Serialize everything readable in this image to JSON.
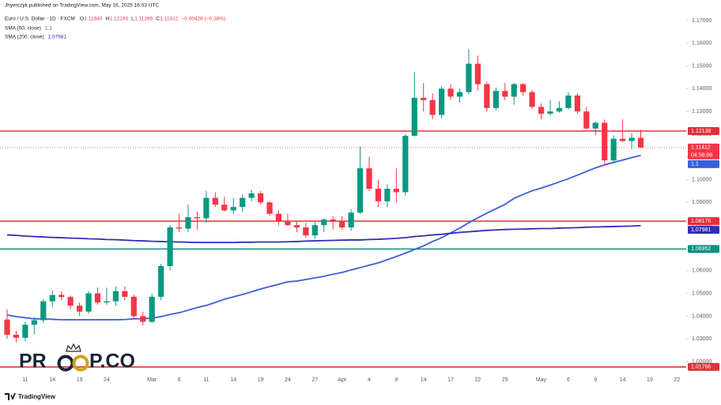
{
  "header": {
    "author": "Jhyerczyk published on TradingView.com, May 16, 2025 16:03 UTC",
    "symbol": "Euro / U.S. Dollar · 1D · FXCM",
    "ohlc": [
      {
        "label": "O",
        "value": "1.11840"
      },
      {
        "label": "H",
        "value": "1.12193"
      },
      {
        "label": "L",
        "value": "1.11396"
      },
      {
        "label": "C",
        "value": "1.11412"
      }
    ],
    "change": "−0.00428 (−0.38%)"
  },
  "chart_data": {
    "type": "candlestick",
    "categories": [
      null,
      null,
      "11",
      null,
      null,
      "14",
      null,
      null,
      "19",
      null,
      null,
      "24",
      null,
      null,
      null,
      null,
      "Mar",
      null,
      null,
      "6",
      null,
      null,
      "11",
      null,
      null,
      "14",
      null,
      null,
      "19",
      null,
      null,
      "24",
      null,
      null,
      "27",
      null,
      null,
      "Apr",
      null,
      null,
      "4",
      null,
      null,
      "9",
      null,
      null,
      "14",
      null,
      null,
      "17",
      null,
      null,
      "22",
      null,
      null,
      "25",
      null,
      null,
      null,
      "May",
      null,
      null,
      "6",
      null,
      null,
      "9",
      null,
      null,
      "14",
      null,
      null,
      "19",
      null,
      null,
      "22"
    ],
    "open": [
      1.0385,
      1.0318,
      1.0305,
      1.0362,
      1.0382,
      1.0465,
      1.0493,
      1.0484,
      1.0446,
      1.042,
      1.05,
      1.046,
      1.0465,
      1.051,
      1.0485,
      1.04,
      1.0375,
      1.0485,
      1.062,
      1.079,
      1.0785,
      1.0835,
      1.083,
      1.092,
      1.089,
      1.0865,
      1.088,
      1.092,
      1.094,
      1.09,
      1.085,
      1.0815,
      1.08,
      1.079,
      1.0755,
      1.08,
      1.0825,
      1.0815,
      1.079,
      1.0855,
      1.105,
      1.096,
      1.0905,
      1.096,
      1.0945,
      1.1193,
      1.136,
      1.135,
      1.1285,
      1.14,
      1.1365,
      1.1385,
      1.151,
      1.142,
      1.1315,
      1.139,
      1.1365,
      1.142,
      1.1385,
      1.132,
      1.129,
      1.13,
      1.1315,
      1.137,
      1.13,
      1.1225,
      1.125,
      1.1085,
      1.118,
      1.117,
      1.1184,
      null,
      null,
      null,
      null
    ],
    "high": [
      1.043,
      1.0335,
      1.0375,
      1.0395,
      1.0475,
      1.0515,
      1.051,
      1.049,
      1.046,
      1.051,
      1.0525,
      1.0525,
      1.053,
      1.053,
      1.0495,
      1.042,
      1.05,
      1.063,
      1.08,
      1.085,
      1.089,
      1.086,
      1.095,
      1.0945,
      1.0925,
      1.092,
      1.0935,
      1.0955,
      1.095,
      1.0905,
      1.0865,
      1.085,
      1.082,
      1.081,
      1.0815,
      1.083,
      1.084,
      1.084,
      1.087,
      1.1145,
      1.11,
      1.1,
      1.098,
      1.105,
      1.12,
      1.1473,
      1.1425,
      1.138,
      1.141,
      1.142,
      1.14,
      1.1573,
      1.1545,
      1.143,
      1.1405,
      1.1425,
      1.1425,
      1.1425,
      1.1395,
      1.1335,
      1.135,
      1.1345,
      1.1385,
      1.138,
      1.132,
      1.1255,
      1.1265,
      1.1195,
      1.1265,
      1.1205,
      1.12193,
      null,
      null,
      null,
      null
    ],
    "low": [
      1.03,
      1.0285,
      1.029,
      1.032,
      1.037,
      1.044,
      1.047,
      1.043,
      1.04,
      1.041,
      1.045,
      1.045,
      1.0445,
      1.047,
      1.039,
      1.036,
      1.037,
      1.047,
      1.06,
      1.077,
      1.077,
      1.078,
      1.081,
      1.088,
      1.086,
      1.085,
      1.086,
      1.0905,
      1.089,
      1.084,
      1.08,
      1.0795,
      1.077,
      1.0745,
      1.074,
      1.077,
      1.078,
      1.078,
      1.0775,
      1.085,
      1.095,
      1.088,
      1.088,
      1.09,
      1.093,
      1.119,
      1.13,
      1.1265,
      1.127,
      1.135,
      1.134,
      1.1375,
      1.139,
      1.13,
      1.1305,
      1.135,
      1.133,
      1.137,
      1.131,
      1.1265,
      1.128,
      1.1295,
      1.131,
      1.129,
      1.122,
      1.1195,
      1.1065,
      1.107,
      1.1165,
      1.1135,
      1.11396,
      null,
      null,
      null,
      null
    ],
    "close": [
      1.0318,
      1.0305,
      1.0362,
      1.0382,
      1.0465,
      1.0493,
      1.0484,
      1.0446,
      1.042,
      1.05,
      1.046,
      1.0465,
      1.051,
      1.0485,
      1.04,
      1.0375,
      1.0485,
      1.062,
      1.079,
      1.0785,
      1.0835,
      1.083,
      1.092,
      1.089,
      1.0865,
      1.088,
      1.092,
      1.094,
      1.09,
      1.085,
      1.0815,
      1.08,
      1.079,
      1.0755,
      1.08,
      1.0825,
      1.0815,
      1.079,
      1.0855,
      1.105,
      1.096,
      1.0905,
      1.096,
      1.0945,
      1.1193,
      1.136,
      1.135,
      1.1285,
      1.14,
      1.1365,
      1.1385,
      1.151,
      1.142,
      1.1315,
      1.139,
      1.1365,
      1.142,
      1.1385,
      1.132,
      1.129,
      1.13,
      1.1315,
      1.137,
      1.13,
      1.1225,
      1.125,
      1.1085,
      1.118,
      1.117,
      1.1184,
      1.11412,
      null,
      null,
      null,
      null
    ],
    "up_color": "#089981",
    "down_color": "#f23645",
    "series": [
      {
        "name": "SMA (50, close)",
        "value_label": "1.1",
        "color": "#3b5fd9",
        "values": [
          1.0405,
          1.0398,
          1.0393,
          1.0388,
          1.0388,
          1.0386,
          1.0384,
          1.0384,
          1.0384,
          1.0384,
          1.0384,
          1.0384,
          1.0384,
          1.0385,
          1.0388,
          1.0389,
          1.0391,
          1.0398,
          1.0407,
          1.0415,
          1.0426,
          1.0438,
          1.0447,
          1.046,
          1.0474,
          1.0485,
          1.0495,
          1.0507,
          1.0519,
          1.053,
          1.054,
          1.0551,
          1.0554,
          1.0561,
          1.0568,
          1.0575,
          1.0584,
          1.0592,
          1.0603,
          1.0613,
          1.0624,
          1.0634,
          1.0648,
          1.0662,
          1.0677,
          1.0693,
          1.0709,
          1.0728,
          1.0745,
          1.0766,
          1.0787,
          1.0811,
          1.0832,
          1.0853,
          1.0872,
          1.0891,
          1.0918,
          1.0935,
          1.0951,
          1.0963,
          1.0976,
          1.099,
          1.1004,
          1.102,
          1.1036,
          1.1052,
          1.1065,
          1.1076,
          1.1086,
          1.1097,
          1.1107,
          null,
          null,
          null,
          null
        ]
      },
      {
        "name": "SMA (200, close)",
        "value_label": "1.07981",
        "color": "#2f2fb8",
        "values": [
          1.0757,
          1.0755,
          1.0752,
          1.075,
          1.0748,
          1.0746,
          1.0745,
          1.0743,
          1.0742,
          1.074,
          1.0739,
          1.0737,
          1.0736,
          1.0734,
          1.0732,
          1.0731,
          1.0729,
          1.0728,
          1.0727,
          1.0726,
          1.0725,
          1.0724,
          1.0724,
          1.0724,
          1.0724,
          1.0724,
          1.0725,
          1.0725,
          1.0726,
          1.0726,
          1.0726,
          1.0727,
          1.0728,
          1.073,
          1.0731,
          1.0732,
          1.0733,
          1.0734,
          1.0735,
          1.0735,
          1.0737,
          1.0738,
          1.074,
          1.0742,
          1.0745,
          1.075,
          1.0753,
          1.0757,
          1.076,
          1.0764,
          1.0768,
          1.0771,
          1.0774,
          1.0777,
          1.0779,
          1.0781,
          1.0782,
          1.0783,
          1.0784,
          1.0785,
          1.0785,
          1.0787,
          1.0788,
          1.0789,
          1.0791,
          1.0792,
          1.0793,
          1.0794,
          1.0795,
          1.0796,
          1.07981,
          null,
          null,
          null,
          null
        ]
      }
    ],
    "levels": [
      {
        "value": 1.12138,
        "label": "1.12138",
        "color": "#e0303a"
      },
      {
        "value": 1.08176,
        "label": "1.08176",
        "color": "#e0303a"
      },
      {
        "value": 1.06952,
        "label": "1.06952",
        "color": "#0f8f7f"
      },
      {
        "value": 1.01766,
        "label": "1.01766",
        "color": "#e0303a"
      }
    ],
    "last_price": {
      "value": 1.11412,
      "label": "1.11412",
      "countdown": "04:56:06",
      "color": "#f23645"
    },
    "ylim": [
      1.0155,
      1.179
    ],
    "yticks": [
      {
        "value": 1.02,
        "label": "1.02000"
      },
      {
        "value": 1.03,
        "label": "1.03000"
      },
      {
        "value": 1.04,
        "label": "1.04000"
      },
      {
        "value": 1.05,
        "label": "1.05000"
      },
      {
        "value": 1.06,
        "label": "1.06000"
      },
      {
        "value": 1.07,
        "label": "1.07000"
      },
      {
        "value": 1.08,
        "label": "1.08000"
      },
      {
        "value": 1.09,
        "label": "1.09000"
      },
      {
        "value": 1.1,
        "label": "1.10000"
      },
      {
        "value": 1.11,
        "label": "1.11000"
      },
      {
        "value": 1.12,
        "label": "1.12000"
      },
      {
        "value": 1.13,
        "label": "1.13000"
      },
      {
        "value": 1.14,
        "label": "1.14000"
      },
      {
        "value": 1.15,
        "label": "1.15000"
      },
      {
        "value": 1.16,
        "label": "1.16000"
      },
      {
        "value": 1.17,
        "label": "1.17000"
      }
    ],
    "grid": false
  },
  "watermark": {
    "left": "PR",
    "right": "P.CO"
  },
  "footer": "TradingView"
}
